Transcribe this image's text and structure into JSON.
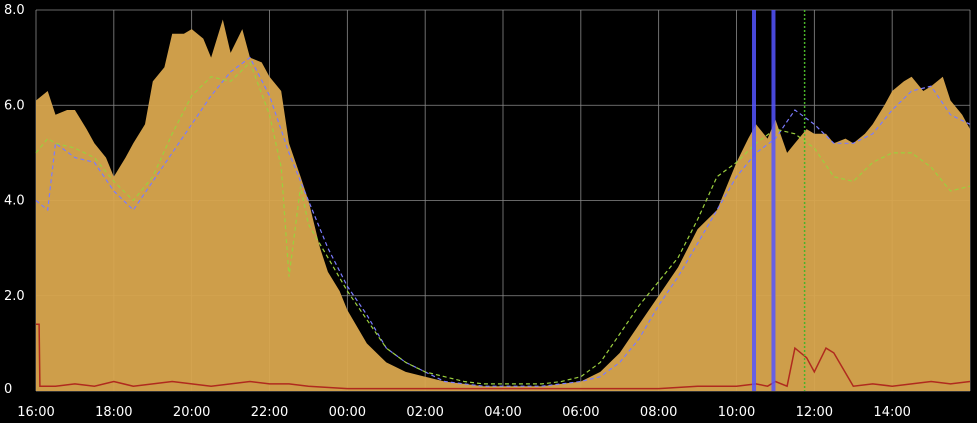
{
  "chart_data": {
    "type": "area",
    "title": "",
    "xlabel": "",
    "ylabel": "",
    "ylim": [
      0,
      8
    ],
    "grid": true,
    "legend": "none",
    "y_ticks": [
      "0",
      "2.0",
      "4.0",
      "6.0",
      "8.0"
    ],
    "y_tick_values": [
      0,
      2,
      4,
      6,
      8
    ],
    "x_ticks": [
      "16:00",
      "18:00",
      "20:00",
      "22:00",
      "00:00",
      "02:00",
      "04:00",
      "06:00",
      "08:00",
      "10:00",
      "12:00",
      "14:00"
    ],
    "x_tick_hours": [
      0,
      2,
      4,
      6,
      8,
      10,
      12,
      14,
      16,
      18,
      20,
      22
    ],
    "x_range_hours": [
      0,
      24
    ],
    "series": [
      {
        "style": "filled-area",
        "color": "#d9a64e",
        "hours": [
          0,
          0.3,
          0.5,
          0.8,
          1.0,
          1.3,
          1.5,
          1.8,
          2.0,
          2.3,
          2.5,
          2.8,
          3.0,
          3.3,
          3.5,
          3.8,
          4.0,
          4.3,
          4.5,
          4.8,
          5.0,
          5.3,
          5.5,
          5.8,
          6.0,
          6.3,
          6.5,
          6.8,
          7.0,
          7.3,
          7.5,
          7.8,
          8.0,
          8.5,
          9.0,
          9.5,
          10.0,
          10.5,
          11.0,
          11.5,
          12.0,
          12.5,
          13.0,
          13.5,
          14.0,
          14.5,
          15.0,
          15.5,
          16.0,
          16.5,
          17.0,
          17.5,
          18.0,
          18.3,
          18.5,
          18.8,
          19.0,
          19.3,
          19.5,
          19.8,
          20.0,
          20.3,
          20.5,
          20.8,
          21.0,
          21.3,
          21.5,
          21.8,
          22.0,
          22.3,
          22.5,
          22.8,
          23.0,
          23.3,
          23.5,
          23.8,
          24.0
        ],
        "values": [
          6.1,
          6.3,
          5.8,
          5.9,
          5.9,
          5.5,
          5.2,
          4.9,
          4.5,
          4.9,
          5.2,
          5.6,
          6.5,
          6.8,
          7.5,
          7.5,
          7.6,
          7.4,
          7.0,
          7.8,
          7.1,
          7.6,
          7.0,
          6.9,
          6.6,
          6.3,
          5.2,
          4.5,
          4.0,
          3.0,
          2.5,
          2.1,
          1.7,
          1.0,
          0.6,
          0.4,
          0.3,
          0.2,
          0.15,
          0.1,
          0.1,
          0.1,
          0.1,
          0.15,
          0.2,
          0.4,
          0.8,
          1.4,
          2.0,
          2.6,
          3.4,
          3.8,
          4.8,
          5.3,
          5.6,
          5.3,
          5.7,
          5.0,
          5.2,
          5.5,
          5.4,
          5.4,
          5.2,
          5.3,
          5.2,
          5.4,
          5.6,
          6.0,
          6.3,
          6.5,
          6.6,
          6.3,
          6.4,
          6.6,
          6.1,
          5.8,
          5.5
        ]
      },
      {
        "style": "dashed",
        "color": "#7b7bff",
        "hours": [
          0,
          0.3,
          0.5,
          1.0,
          1.5,
          2.0,
          2.5,
          3.0,
          3.5,
          4.0,
          4.5,
          5.0,
          5.5,
          6.0,
          6.5,
          7.0,
          7.5,
          8.0,
          8.5,
          9.0,
          9.5,
          10.0,
          10.5,
          11.0,
          11.5,
          12.0,
          12.5,
          13.0,
          13.5,
          14.0,
          14.5,
          15.0,
          15.5,
          16.0,
          16.5,
          17.0,
          17.5,
          18.0,
          18.5,
          19.0,
          19.5,
          20.0,
          20.5,
          21.0,
          21.5,
          22.0,
          22.5,
          23.0,
          23.5,
          24.0
        ],
        "values": [
          4.0,
          3.8,
          5.2,
          4.9,
          4.8,
          4.2,
          3.8,
          4.4,
          5.0,
          5.6,
          6.2,
          6.7,
          7.0,
          6.2,
          5.0,
          4.0,
          3.0,
          2.2,
          1.6,
          0.9,
          0.6,
          0.4,
          0.2,
          0.15,
          0.1,
          0.1,
          0.1,
          0.1,
          0.15,
          0.2,
          0.3,
          0.6,
          1.1,
          1.8,
          2.4,
          3.1,
          3.8,
          4.5,
          5.0,
          5.3,
          5.9,
          5.6,
          5.2,
          5.2,
          5.4,
          5.9,
          6.3,
          6.4,
          5.8,
          5.6
        ]
      },
      {
        "style": "dashed",
        "color": "#9bcf3e",
        "hours": [
          0,
          0.3,
          0.5,
          1.0,
          1.5,
          2.0,
          2.5,
          3.0,
          3.5,
          4.0,
          4.5,
          5.0,
          5.5,
          6.0,
          6.3,
          6.5,
          6.8,
          7.0,
          7.5,
          8.0,
          8.5,
          9.0,
          9.5,
          10.0,
          10.5,
          11.0,
          11.5,
          12.0,
          12.5,
          13.0,
          13.5,
          14.0,
          14.5,
          15.0,
          15.5,
          16.0,
          16.5,
          17.0,
          17.5,
          18.0,
          18.5,
          19.0,
          19.5,
          20.0,
          20.5,
          21.0,
          21.5,
          22.0,
          22.5,
          23.0,
          23.5,
          24.0
        ],
        "values": [
          5.0,
          5.3,
          5.2,
          5.1,
          4.9,
          4.4,
          4.0,
          4.5,
          5.4,
          6.2,
          6.6,
          6.5,
          6.9,
          5.8,
          4.7,
          2.4,
          4.3,
          3.5,
          2.8,
          2.1,
          1.5,
          0.9,
          0.6,
          0.4,
          0.3,
          0.2,
          0.15,
          0.15,
          0.15,
          0.15,
          0.2,
          0.3,
          0.6,
          1.2,
          1.8,
          2.3,
          2.8,
          3.6,
          4.5,
          4.8,
          5.2,
          5.5,
          5.4,
          5.1,
          4.5,
          4.4,
          4.8,
          5.0,
          5.0,
          4.7,
          4.2,
          4.3
        ]
      },
      {
        "style": "solid",
        "color": "#b02a1e",
        "hours": [
          0,
          0.08,
          0.1,
          0.5,
          1.0,
          1.5,
          2.0,
          2.5,
          3.0,
          3.5,
          4.0,
          4.5,
          5.0,
          5.5,
          6.0,
          6.5,
          7.0,
          8.0,
          9.0,
          10.0,
          12.0,
          14.0,
          16.0,
          17.0,
          18.0,
          18.5,
          18.8,
          19.0,
          19.3,
          19.5,
          19.8,
          20.0,
          20.3,
          20.5,
          21.0,
          21.5,
          22.0,
          22.5,
          23.0,
          23.5,
          24.0
        ],
        "values": [
          1.4,
          1.4,
          0.1,
          0.1,
          0.15,
          0.1,
          0.2,
          0.1,
          0.15,
          0.2,
          0.15,
          0.1,
          0.15,
          0.2,
          0.15,
          0.15,
          0.1,
          0.05,
          0.05,
          0.05,
          0.05,
          0.05,
          0.05,
          0.1,
          0.1,
          0.15,
          0.1,
          0.2,
          0.1,
          0.9,
          0.7,
          0.4,
          0.9,
          0.8,
          0.1,
          0.15,
          0.1,
          0.15,
          0.2,
          0.15,
          0.2
        ]
      },
      {
        "style": "vertical-markers",
        "color": "#5555ff",
        "hours": [
          18.45,
          18.95
        ]
      },
      {
        "style": "vertical-markers",
        "color": "#4ab42a",
        "hours": [
          19.75
        ]
      }
    ]
  }
}
